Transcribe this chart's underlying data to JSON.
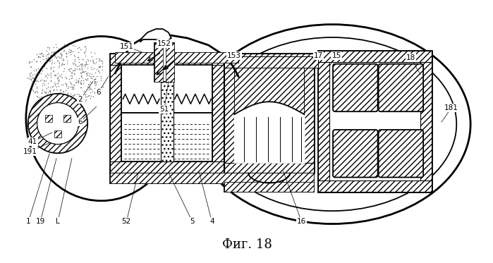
{
  "title": "Фиг. 18",
  "title_font": "DejaVu Serif",
  "title_size": 13,
  "bg_color": "#ffffff",
  "line_color": "#000000",
  "label_data": [
    [
      "1",
      38,
      58,
      68,
      155
    ],
    [
      "19",
      55,
      58,
      78,
      148
    ],
    [
      "L",
      80,
      58,
      100,
      148
    ],
    [
      "52",
      178,
      58,
      195,
      128
    ],
    [
      "5",
      272,
      58,
      238,
      128
    ],
    [
      "4",
      300,
      58,
      282,
      128
    ],
    [
      "16",
      428,
      58,
      402,
      130
    ],
    [
      "41",
      44,
      172,
      72,
      185
    ],
    [
      "191",
      40,
      158,
      68,
      170
    ],
    [
      "2",
      112,
      232,
      130,
      258
    ],
    [
      "6",
      138,
      242,
      152,
      265
    ],
    [
      "6",
      112,
      200,
      135,
      222
    ],
    [
      "51",
      232,
      218,
      238,
      258
    ],
    [
      "151",
      178,
      308,
      200,
      300
    ],
    [
      "152",
      232,
      312,
      222,
      307
    ],
    [
      "153",
      332,
      295,
      322,
      288
    ],
    [
      "17",
      452,
      295,
      440,
      280
    ],
    [
      "15",
      478,
      295,
      468,
      280
    ],
    [
      "18",
      584,
      292,
      598,
      268
    ],
    [
      "181",
      642,
      220,
      628,
      200
    ]
  ]
}
